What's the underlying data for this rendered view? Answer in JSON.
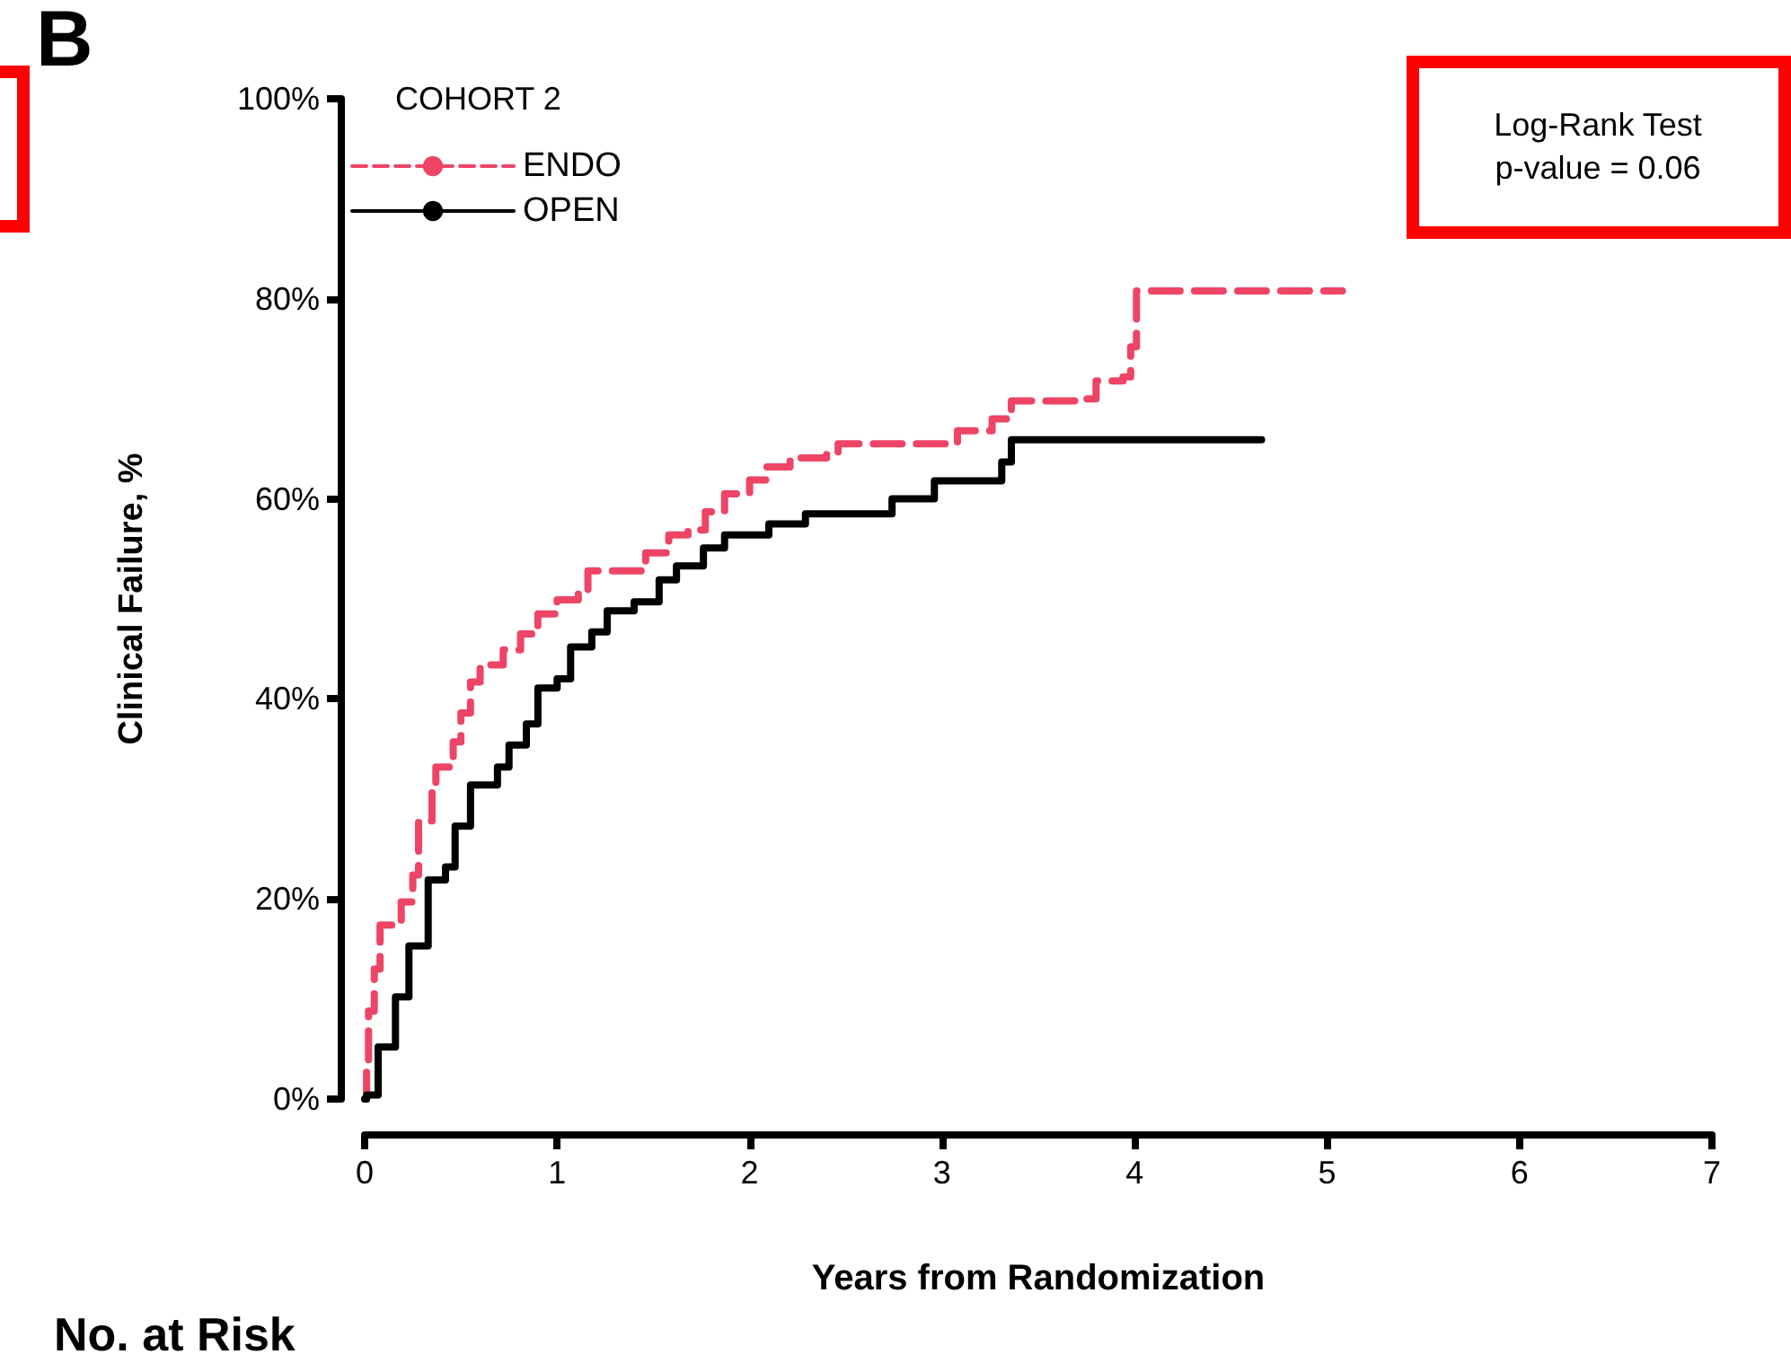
{
  "chart_data": {
    "type": "step",
    "xlabel": "Years from Randomization",
    "ylabel": "Clinical Failure, %",
    "legend_title": "COHORT 2",
    "legend": "top left",
    "grid": false,
    "marker": "none",
    "xlim": [
      0,
      7
    ],
    "xticks": [
      0,
      1,
      2,
      3,
      4,
      5,
      6,
      7
    ],
    "ylim": [
      0,
      100
    ],
    "yticks": [
      {
        "value": 0,
        "label": "0%"
      },
      {
        "value": 20,
        "label": "20%"
      },
      {
        "value": 40,
        "label": "40%"
      },
      {
        "value": 60,
        "label": "60%"
      },
      {
        "value": 80,
        "label": "80%"
      },
      {
        "value": 100,
        "label": "100%"
      }
    ],
    "annotations": [
      "B",
      "Log-Rank Test\np-value = 0.06",
      "No. at Risk"
    ],
    "series": [
      {
        "name": "ENDO",
        "color": "#ee4466",
        "line_style": "dashed",
        "x": [
          0,
          0.01,
          0.02,
          0.05,
          0.08,
          0.19,
          0.25,
          0.28,
          0.35,
          0.37,
          0.46,
          0.5,
          0.55,
          0.6,
          0.72,
          0.81,
          0.9,
          1.0,
          1.11,
          1.16,
          1.34,
          1.46,
          1.58,
          1.68,
          1.77,
          1.87,
          2.0,
          2.09,
          2.21,
          2.4,
          2.46,
          2.74,
          3.02,
          3.08,
          3.26,
          3.36,
          3.7,
          3.8,
          3.94,
          3.98,
          4.01,
          5.08
        ],
        "values": [
          0,
          2.7,
          8.8,
          13,
          17.4,
          19.7,
          22.4,
          27.8,
          31.4,
          33.2,
          35.7,
          38.6,
          41.7,
          43.4,
          44.9,
          46.5,
          48.5,
          49.9,
          50.6,
          52.8,
          52.8,
          54.6,
          56.4,
          56.9,
          58.7,
          60.5,
          61.9,
          63.2,
          64.1,
          64.6,
          65.5,
          65.5,
          65.5,
          66.8,
          68,
          69.8,
          70,
          71.8,
          72.2,
          75.2,
          80.8,
          80.8
        ]
      },
      {
        "name": "OPEN",
        "color": "#000000",
        "line_style": "solid",
        "x": [
          0,
          0.01,
          0.07,
          0.16,
          0.23,
          0.33,
          0.42,
          0.47,
          0.55,
          0.69,
          0.75,
          0.84,
          0.9,
          1.0,
          1.07,
          1.18,
          1.26,
          1.4,
          1.53,
          1.62,
          1.76,
          1.87,
          2.1,
          2.29,
          2.74,
          2.96,
          3.31,
          3.36,
          4.66
        ],
        "values": [
          0,
          0.4,
          5.2,
          10.2,
          15.3,
          21.9,
          23.2,
          27.3,
          31.4,
          33.2,
          35.4,
          37.5,
          41.1,
          42,
          45.2,
          46.7,
          48.8,
          49.7,
          51.9,
          53.3,
          55.1,
          56.4,
          57.5,
          58.5,
          60,
          61.8,
          63.7,
          65.9,
          65.9
        ]
      }
    ]
  }
}
